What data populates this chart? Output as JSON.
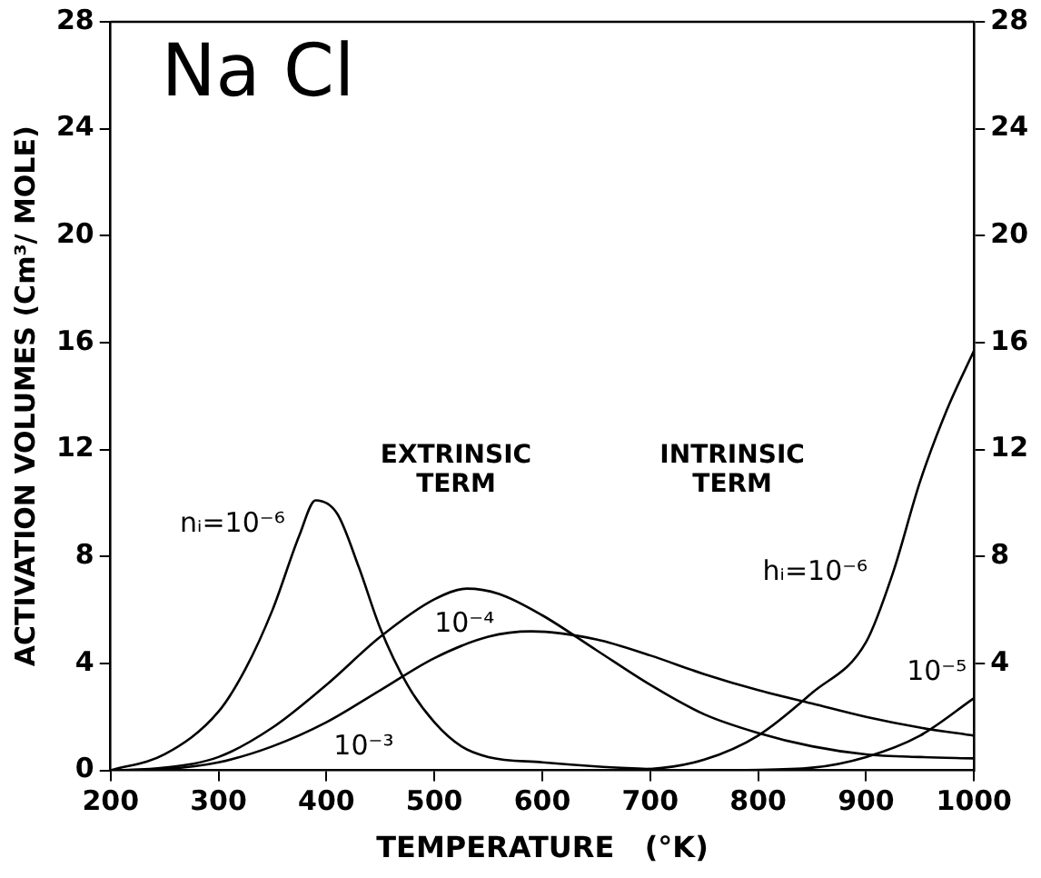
{
  "chart_data": {
    "type": "line",
    "title": "Na Cl",
    "xlabel": "TEMPERATURE   (°K)",
    "ylabel": "ACTIVATION VOLUMES (Cm³/ MOLE)",
    "annotations": [
      "EXTRINSIC TERM",
      "INTRINSIC TERM"
    ],
    "xlim": [
      200,
      1000
    ],
    "xticks": [
      200,
      300,
      400,
      500,
      600,
      700,
      800,
      900,
      1000
    ],
    "ylim": [
      0,
      28
    ],
    "yticks": [
      0,
      4,
      8,
      12,
      16,
      20,
      24,
      28
    ],
    "y2lim": [
      0,
      28
    ],
    "y2ticks": [
      4,
      8,
      12,
      16,
      20,
      24,
      28
    ],
    "grid": false,
    "legend": false,
    "marker": "none",
    "line_style": "solid",
    "series": [
      {
        "name": "nᵢ=10⁻⁶",
        "color": "#000000",
        "x": [
          200,
          250,
          300,
          325,
          350,
          375,
          390,
          410,
          430,
          450,
          475,
          500,
          525,
          550,
          600,
          650,
          700
        ],
        "values": [
          0,
          0.6,
          2.2,
          3.8,
          6.0,
          8.8,
          10.1,
          9.6,
          7.6,
          5.3,
          3.2,
          1.8,
          0.9,
          0.5,
          0.3,
          0.15,
          0.05
        ]
      },
      {
        "name": "10⁻⁴",
        "color": "#000000",
        "x": [
          200,
          250,
          300,
          350,
          400,
          450,
          500,
          530,
          560,
          600,
          650,
          700,
          750,
          800,
          850,
          900,
          950,
          1000
        ],
        "values": [
          0,
          0.1,
          0.5,
          1.6,
          3.2,
          5.0,
          6.4,
          6.8,
          6.6,
          5.8,
          4.5,
          3.2,
          2.1,
          1.4,
          0.9,
          0.6,
          0.5,
          0.45
        ]
      },
      {
        "name": "10⁻³",
        "color": "#000000",
        "x": [
          200,
          250,
          300,
          350,
          400,
          450,
          500,
          550,
          590,
          650,
          700,
          750,
          800,
          850,
          900,
          950,
          1000
        ],
        "values": [
          0,
          0.05,
          0.3,
          0.9,
          1.8,
          3.0,
          4.2,
          5.0,
          5.2,
          4.9,
          4.3,
          3.6,
          3.0,
          2.5,
          2.0,
          1.6,
          1.3
        ]
      },
      {
        "name": "hᵢ=10⁻⁶",
        "color": "#000000",
        "x": [
          650,
          700,
          750,
          800,
          850,
          900,
          925,
          950,
          975,
          1000
        ],
        "values": [
          0,
          0.05,
          0.4,
          1.3,
          2.9,
          4.8,
          7.4,
          10.8,
          13.5,
          15.7
        ]
      },
      {
        "name": "10⁻⁵",
        "color": "#000000",
        "x": [
          780,
          850,
          900,
          950,
          1000
        ],
        "values": [
          0,
          0.1,
          0.5,
          1.3,
          2.7
        ]
      }
    ]
  }
}
